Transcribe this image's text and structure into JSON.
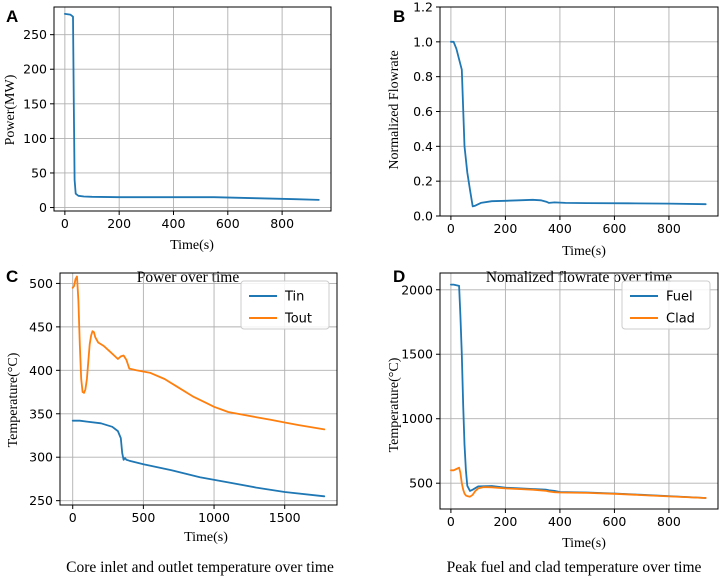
{
  "colors": {
    "blue": "#1f77b4",
    "orange": "#ff7f0e"
  },
  "chart_data": [
    {
      "type": "line",
      "panel_label": "A",
      "caption": "Power over time",
      "xlabel": "Time(s)",
      "ylabel": "Power(MW)",
      "xlim": [
        -40,
        980
      ],
      "ylim": [
        -5,
        290
      ],
      "xticks": [
        0,
        200,
        400,
        600,
        800
      ],
      "xtick_labels": [
        "0",
        "200",
        "400",
        "600",
        "800"
      ],
      "yticks": [
        0,
        50,
        100,
        150,
        200,
        250
      ],
      "ytick_labels": [
        "0",
        "50",
        "100",
        "150",
        "200",
        "250"
      ],
      "grid": true,
      "series": [
        {
          "name": "Power",
          "color": "#1f77b4",
          "x": [
            0,
            20,
            30,
            33,
            36,
            40,
            50,
            70,
            100,
            200,
            400,
            550,
            700,
            850,
            935
          ],
          "y": [
            280,
            279,
            276,
            150,
            40,
            20,
            17,
            16,
            15.5,
            15,
            15,
            15,
            13.5,
            12,
            11
          ]
        }
      ]
    },
    {
      "type": "line",
      "panel_label": "B",
      "caption": "Nomalized flowrate over time",
      "xlabel": "Time(s)",
      "ylabel": "Normalized Flowrate",
      "xlim": [
        -40,
        980
      ],
      "ylim": [
        0,
        1.2
      ],
      "xticks": [
        0,
        200,
        400,
        600,
        800
      ],
      "xtick_labels": [
        "0",
        "200",
        "400",
        "600",
        "800"
      ],
      "yticks": [
        0.0,
        0.2,
        0.4,
        0.6,
        0.8,
        1.0,
        1.2
      ],
      "ytick_labels": [
        "0.0",
        "0.2",
        "0.4",
        "0.6",
        "0.8",
        "1.0",
        "1.2"
      ],
      "grid": true,
      "series": [
        {
          "name": "Flowrate",
          "color": "#1f77b4",
          "x": [
            0,
            10,
            20,
            30,
            40,
            50,
            60,
            70,
            80,
            90,
            110,
            150,
            200,
            250,
            300,
            330,
            350,
            360,
            380,
            420,
            500,
            650,
            800,
            935
          ],
          "y": [
            1.0,
            1.0,
            0.96,
            0.9,
            0.84,
            0.4,
            0.25,
            0.15,
            0.055,
            0.06,
            0.075,
            0.085,
            0.087,
            0.09,
            0.093,
            0.09,
            0.082,
            0.075,
            0.078,
            0.075,
            0.074,
            0.073,
            0.071,
            0.068
          ]
        }
      ]
    },
    {
      "type": "line",
      "panel_label": "C",
      "caption": "Core inlet and outlet temperature over time",
      "xlabel": "Time(s)",
      "ylabel": "Temperature(°C)",
      "xlim": [
        -90,
        1870
      ],
      "ylim": [
        245,
        512
      ],
      "xticks": [
        0,
        500,
        1000,
        1500
      ],
      "xtick_labels": [
        "0",
        "500",
        "1000",
        "1500"
      ],
      "yticks": [
        250,
        300,
        350,
        400,
        450,
        500
      ],
      "ytick_labels": [
        "250",
        "300",
        "350",
        "400",
        "450",
        "500"
      ],
      "grid": true,
      "legend": {
        "position": "top-right",
        "entries": [
          "Tin",
          "Tout"
        ]
      },
      "series": [
        {
          "name": "Tin",
          "color": "#1f77b4",
          "x": [
            0,
            50,
            100,
            200,
            280,
            320,
            340,
            350,
            360,
            370,
            380,
            400,
            500,
            700,
            900,
            1100,
            1300,
            1500,
            1780
          ],
          "y": [
            342,
            342,
            341,
            339,
            335,
            330,
            322,
            305,
            297,
            299,
            297,
            296,
            292,
            285,
            277,
            271,
            265,
            260,
            255
          ]
        },
        {
          "name": "Tout",
          "color": "#ff7f0e",
          "x": [
            0,
            10,
            20,
            30,
            40,
            50,
            60,
            70,
            80,
            90,
            100,
            110,
            120,
            130,
            140,
            150,
            160,
            180,
            220,
            260,
            300,
            320,
            340,
            360,
            380,
            400,
            450,
            550,
            650,
            750,
            850,
            950,
            1000,
            1050,
            1100,
            1200,
            1300,
            1400,
            1500,
            1600,
            1780
          ],
          "y": [
            495,
            497,
            505,
            508,
            480,
            430,
            390,
            375,
            374,
            378,
            390,
            410,
            430,
            440,
            445,
            444,
            438,
            432,
            428,
            422,
            416,
            413,
            416,
            417,
            412,
            402,
            400,
            397,
            390,
            380,
            370,
            362,
            358,
            355,
            352,
            349,
            346,
            343,
            340,
            337,
            332
          ]
        }
      ]
    },
    {
      "type": "line",
      "panel_label": "D",
      "caption": "Peak fuel and clad temperature over time",
      "xlabel": "Time(s)",
      "ylabel": "Temperature(°C)",
      "xlim": [
        -40,
        980
      ],
      "ylim": [
        300,
        2130
      ],
      "xticks": [
        0,
        200,
        400,
        600,
        800
      ],
      "xtick_labels": [
        "0",
        "200",
        "400",
        "600",
        "800"
      ],
      "yticks": [
        500,
        1000,
        1500,
        2000
      ],
      "ytick_labels": [
        "500",
        "1000",
        "1500",
        "2000"
      ],
      "grid": true,
      "legend": {
        "position": "top-right",
        "entries": [
          "Fuel",
          "Clad"
        ]
      },
      "series": [
        {
          "name": "Fuel",
          "color": "#1f77b4",
          "x": [
            0,
            10,
            20,
            30,
            35,
            40,
            45,
            50,
            55,
            60,
            70,
            80,
            100,
            150,
            200,
            300,
            350,
            360,
            380,
            400,
            500,
            600,
            700,
            800,
            935
          ],
          "y": [
            2040,
            2040,
            2035,
            2030,
            1800,
            1500,
            1100,
            800,
            600,
            480,
            440,
            450,
            475,
            478,
            465,
            455,
            450,
            445,
            440,
            432,
            428,
            420,
            410,
            400,
            385
          ]
        },
        {
          "name": "Clad",
          "color": "#ff7f0e",
          "x": [
            0,
            10,
            20,
            30,
            35,
            40,
            45,
            50,
            55,
            60,
            70,
            80,
            90,
            100,
            120,
            150,
            200,
            300,
            350,
            360,
            380,
            400,
            500,
            600,
            700,
            800,
            935
          ],
          "y": [
            600,
            600,
            610,
            620,
            580,
            500,
            450,
            420,
            405,
            400,
            395,
            410,
            440,
            460,
            470,
            468,
            460,
            450,
            440,
            436,
            430,
            428,
            425,
            418,
            408,
            398,
            385
          ]
        }
      ]
    }
  ]
}
